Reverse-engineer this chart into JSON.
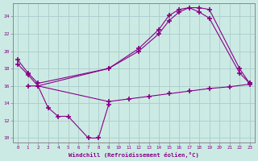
{
  "background_color": "#cceae4",
  "grid_color": "#aacccc",
  "line_color": "#880088",
  "xlabel": "Windchill (Refroidissement éolien,°C)",
  "ylabel_ticks": [
    10,
    12,
    14,
    16,
    18,
    20,
    22,
    24
  ],
  "xlim": [
    -0.5,
    23.5
  ],
  "ylim": [
    9.5,
    25.5
  ],
  "curve1_x": [
    0,
    1,
    2,
    9,
    12,
    14,
    15,
    16,
    17,
    18,
    19,
    22,
    23
  ],
  "curve1_y": [
    19.0,
    17.5,
    16.3,
    18.0,
    20.3,
    22.5,
    24.1,
    24.8,
    25.0,
    25.0,
    24.8,
    18.0,
    16.3
  ],
  "curve2_x": [
    0,
    1,
    2,
    9,
    12,
    14,
    15,
    16,
    17,
    18,
    19,
    22,
    23
  ],
  "curve2_y": [
    18.5,
    17.3,
    16.0,
    18.0,
    20.0,
    22.0,
    23.5,
    24.5,
    25.0,
    24.5,
    23.8,
    17.5,
    16.3
  ],
  "curve3_x": [
    2,
    3,
    4,
    5,
    7,
    8,
    9
  ],
  "curve3_y": [
    16.0,
    13.5,
    12.5,
    12.5,
    10.0,
    10.0,
    13.8
  ],
  "curve4_x": [
    1,
    2,
    9,
    11,
    13,
    15,
    17,
    19,
    21,
    23
  ],
  "curve4_y": [
    16.0,
    16.0,
    14.2,
    14.5,
    14.8,
    15.1,
    15.4,
    15.7,
    15.9,
    16.2
  ]
}
